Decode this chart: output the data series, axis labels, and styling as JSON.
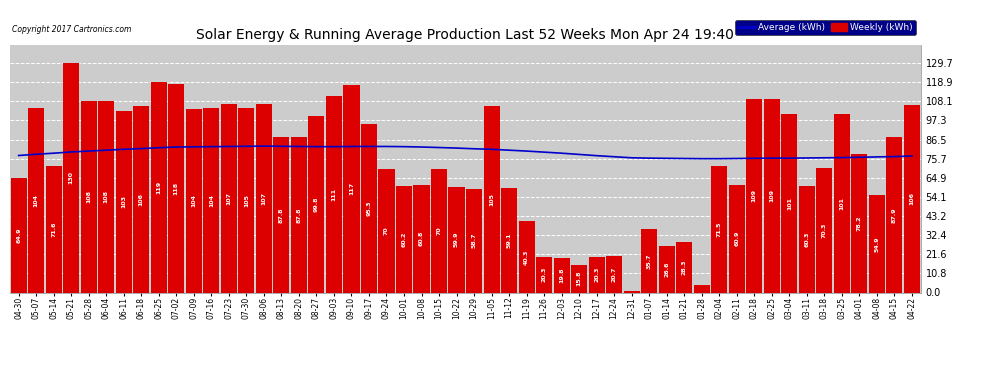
{
  "title": "Solar Energy & Running Average Production Last 52 Weeks Mon Apr 24 19:40",
  "copyright": "Copyright 2017 Cartronics.com",
  "bar_color": "#dd0000",
  "avg_line_color": "#0000cc",
  "background_color": "#ffffff",
  "plot_bg_color": "#cccccc",
  "legend_avg_color": "#0000cc",
  "legend_weekly_color": "#dd0000",
  "ylim": [
    0,
    140
  ],
  "yticks": [
    0.0,
    10.8,
    21.6,
    32.4,
    43.2,
    54.1,
    64.9,
    75.7,
    86.5,
    97.3,
    108.1,
    118.9,
    129.7
  ],
  "categories": [
    "04-30",
    "05-07",
    "05-14",
    "05-21",
    "05-28",
    "06-04",
    "06-11",
    "06-18",
    "06-25",
    "07-02",
    "07-09",
    "07-16",
    "07-23",
    "07-30",
    "08-06",
    "08-13",
    "08-20",
    "08-27",
    "09-03",
    "09-10",
    "09-17",
    "09-24",
    "10-01",
    "10-08",
    "10-15",
    "10-22",
    "10-29",
    "11-05",
    "11-12",
    "11-19",
    "11-26",
    "12-03",
    "12-10",
    "12-17",
    "12-24",
    "12-31",
    "01-07",
    "01-14",
    "01-21",
    "01-28",
    "02-04",
    "02-11",
    "02-18",
    "02-25",
    "03-04",
    "03-11",
    "03-18",
    "03-25",
    "04-01",
    "04-08",
    "04-15",
    "04-22"
  ],
  "weekly_values": [
    64.858,
    104.118,
    71.606,
    129.794,
    108.442,
    108.354,
    102.656,
    105.668,
    119.102,
    118.098,
    103.8,
    104.456,
    106.592,
    104.506,
    106.506,
    87.818,
    87.772,
    99.836,
    111.426,
    117.428,
    95.314,
    70.04,
    60.164,
    60.794,
    70.024,
    59.932,
    58.68,
    105.402,
    59.08,
    40.326,
    20.324,
    19.79,
    15.81,
    20.302,
    20.702,
    1.0,
    35.708,
    26.556,
    28.312,
    4.312,
    71.46,
    60.946,
    109.236,
    109.346,
    101.15,
    60.348,
    70.264,
    101.15,
    78.164,
    54.892,
    87.892,
    106.072
  ],
  "avg_values": [
    77.5,
    78.2,
    78.8,
    79.5,
    80.0,
    80.5,
    81.0,
    81.4,
    81.9,
    82.3,
    82.4,
    82.5,
    82.6,
    82.7,
    82.8,
    82.7,
    82.6,
    82.5,
    82.5,
    82.6,
    82.6,
    82.6,
    82.5,
    82.3,
    82.0,
    81.7,
    81.3,
    81.0,
    80.5,
    80.0,
    79.4,
    78.8,
    78.1,
    77.4,
    76.8,
    76.2,
    76.0,
    75.9,
    75.8,
    75.7,
    75.7,
    75.8,
    75.9,
    76.0,
    76.0,
    76.1,
    76.2,
    76.3,
    76.5,
    76.7,
    76.9,
    77.2
  ]
}
